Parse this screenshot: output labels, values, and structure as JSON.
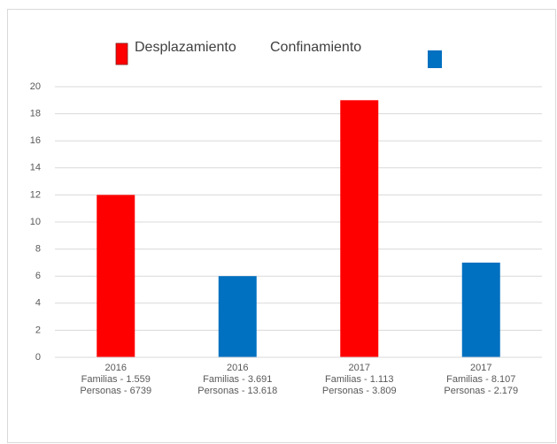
{
  "chart_data": {
    "type": "bar",
    "categories": [
      [
        "2016",
        "Familias - 1.559",
        "Personas - 6739"
      ],
      [
        "2016",
        "Familias - 3.691",
        "Personas - 13.618"
      ],
      [
        "2017",
        "Familias - 1.113",
        "Personas - 3.809"
      ],
      [
        "2017",
        "Familias - 8.107",
        "Personas - 2.179"
      ]
    ],
    "series": [
      {
        "name": "Desplazamiento",
        "color": "#ff0000",
        "values": [
          12,
          null,
          19,
          null
        ]
      },
      {
        "name": "Confinamiento",
        "color": "#0070c0",
        "values": [
          null,
          6,
          null,
          7
        ]
      }
    ],
    "ylim": [
      0,
      20
    ],
    "yticks": [
      0,
      2,
      4,
      6,
      8,
      10,
      12,
      14,
      16,
      18,
      20
    ],
    "grid": true
  }
}
